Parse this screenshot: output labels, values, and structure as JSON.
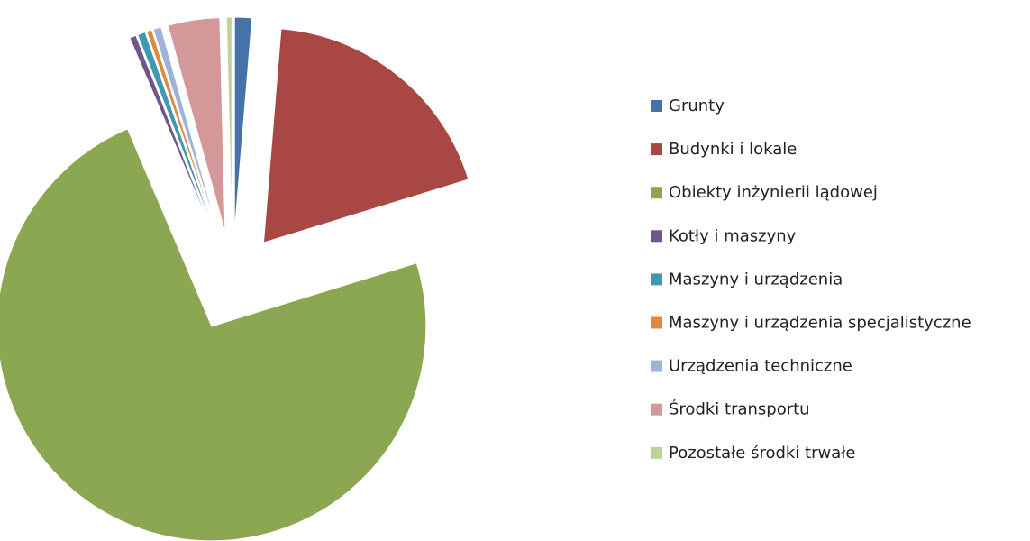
{
  "chart_data": {
    "type": "pie",
    "categories": [
      "Grunty",
      "Budynki i lokale",
      "Obiekty inżynierii lądowej",
      "Kotły i maszyny",
      "Maszyny i urządzenia",
      "Maszyny i urządzenia specjalistyczne",
      "Urządzenia techniczne",
      "Środki transportu",
      "Pozostałe środki trwałe"
    ],
    "values": [
      1.3,
      18.9,
      73.2,
      0.5,
      0.6,
      0.4,
      0.6,
      3.9,
      0.4
    ],
    "colors": [
      "#4573a9",
      "#a94744",
      "#8ba752",
      "#6f578e",
      "#3f9ab0",
      "#e0883e",
      "#9fb3d8",
      "#d59898",
      "#bdd39b"
    ],
    "legend": "right"
  }
}
